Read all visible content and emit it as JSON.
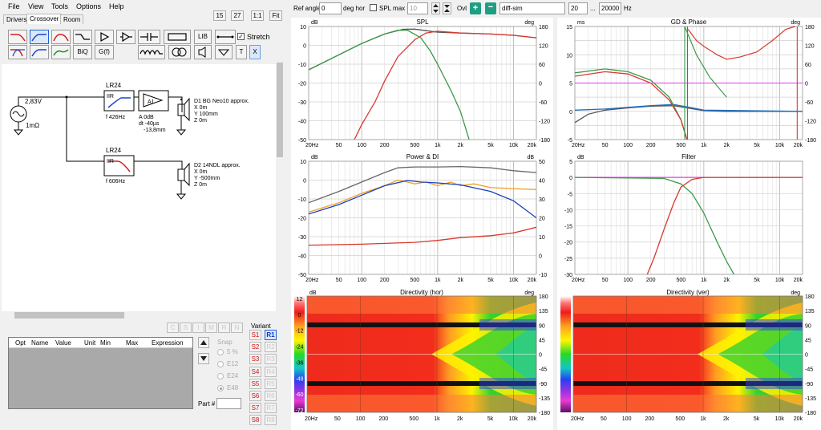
{
  "menu": [
    "File",
    "View",
    "Tools",
    "Options",
    "Help"
  ],
  "tabs": [
    "Drivers",
    "Crossover",
    "Room"
  ],
  "zoom_buttons": [
    "15",
    "27",
    "1:1",
    "Fit"
  ],
  "toolbar": {
    "lib": "LIB",
    "stretch": "Stretch",
    "biq": "BiQ",
    "gf": "G(f)",
    "t": "T",
    "x": "X"
  },
  "topbar": {
    "ref_angle_label": "Ref angle",
    "ref_angle_value": "0",
    "deg_hor": "deg hor",
    "spl_max_label": "SPL max",
    "spl_max_value": "10",
    "ovl_label": "Ovl",
    "ovl_value": "diff-sim",
    "freq_from": "20",
    "freq_dots": "...",
    "freq_to": "20000",
    "hz": "Hz"
  },
  "schematic": {
    "source_voltage": "2,83V",
    "source_res": "1mΩ",
    "filter1": {
      "type": "LR24",
      "kind": "IIR",
      "freq": "f   426Hz"
    },
    "amp": {
      "label": "A1",
      "gain": "A  0dB",
      "delay": "dt -40µs",
      "dist": "-13,8mm"
    },
    "driver1": [
      "D1 BG Neo10 approx.",
      "X 0m",
      "Y 100mm",
      "Z 0m"
    ],
    "filter2": {
      "type": "LR24",
      "kind": "IIR",
      "freq": "f   606Hz"
    },
    "driver2": [
      "D2 14NDL approx.",
      "X 0m",
      "Y -500mm",
      "Z 0m"
    ]
  },
  "param_table": {
    "headers": [
      "Opt",
      "Name",
      "Value",
      "Unit",
      "Min",
      "Max",
      "Expression"
    ]
  },
  "snap": {
    "label": "Snap",
    "options": [
      "5 %",
      "E12",
      "E24",
      "E48"
    ],
    "selected": "E48"
  },
  "part_label": "Part #",
  "variant": {
    "label": "Variant",
    "small_buttons": [
      "C",
      "S",
      "I",
      "M",
      "R",
      "N"
    ],
    "save": [
      "S1",
      "S2",
      "S3",
      "S4",
      "S5",
      "S6",
      "S7",
      "S8"
    ],
    "recall": [
      "R1",
      "R2",
      "R3",
      "R4",
      "R5",
      "R6",
      "R7",
      "R8"
    ],
    "selected": "R1"
  },
  "plots": {
    "spl": {
      "title": "SPL",
      "left_unit": "dB",
      "right_unit": "deg",
      "y_ticks": [
        "10",
        "0",
        "-10",
        "-20",
        "-30",
        "-40",
        "-50"
      ],
      "r_ticks": [
        "180",
        "120",
        "60",
        "0",
        "-60",
        "-120",
        "-180"
      ],
      "x_ticks": [
        "20Hz",
        "50",
        "100",
        "200",
        "500",
        "1k",
        "2k",
        "5k",
        "10k",
        "20k"
      ]
    },
    "gd": {
      "title": "GD & Phase",
      "left_unit": "ms",
      "right_unit": "deg",
      "y_ticks": [
        "15",
        "10",
        "5",
        "0",
        "-5"
      ],
      "r_ticks": [
        "180",
        "120",
        "60",
        "0",
        "-60",
        "-120",
        "-180"
      ],
      "x_ticks": [
        "20Hz",
        "50",
        "100",
        "200",
        "500",
        "1k",
        "2k",
        "5k",
        "10k",
        "20k"
      ]
    },
    "power": {
      "title": "Power & DI",
      "left_unit": "dB",
      "right_unit": "dB",
      "y_ticks": [
        "10",
        "0",
        "-10",
        "-20",
        "-30",
        "-40",
        "-50"
      ],
      "r_ticks": [
        "50",
        "40",
        "30",
        "20",
        "10",
        "0",
        "-10"
      ],
      "x_ticks": [
        "20Hz",
        "50",
        "100",
        "200",
        "500",
        "1k",
        "2k",
        "5k",
        "10k",
        "20k"
      ]
    },
    "filter": {
      "title": "Filter",
      "left_unit": "dB",
      "y_ticks": [
        "5",
        "0",
        "-5",
        "-10",
        "-15",
        "-20",
        "-25",
        "-30"
      ],
      "x_ticks": [
        "20Hz",
        "50",
        "100",
        "200",
        "500",
        "1k",
        "2k",
        "5k",
        "10k",
        "20k"
      ]
    },
    "dir_hor": {
      "title": "Directivity (hor)",
      "left_unit": "dB",
      "right_unit": "deg",
      "scale_ticks": [
        "12",
        "0",
        "-12",
        "-24",
        "-36",
        "-48",
        "-60",
        "-72"
      ],
      "r_ticks": [
        "180",
        "135",
        "90",
        "45",
        "0",
        "-45",
        "-90",
        "-135",
        "-180"
      ],
      "x_ticks": [
        "20Hz",
        "50",
        "100",
        "200",
        "500",
        "1k",
        "2k",
        "5k",
        "10k",
        "20k"
      ]
    },
    "dir_ver": {
      "title": "Directivity (ver)",
      "right_unit": "deg",
      "r_ticks": [
        "180",
        "135",
        "90",
        "45",
        "0",
        "-45",
        "-90",
        "-135",
        "-180"
      ],
      "x_ticks": [
        "20Hz",
        "50",
        "100",
        "200",
        "500",
        "1k",
        "2k",
        "5k",
        "10k",
        "20k"
      ]
    }
  },
  "chart_data": [
    {
      "type": "line",
      "title": "SPL",
      "xscale": "log",
      "xlim": [
        20,
        20000
      ],
      "ylim": [
        -50,
        10
      ],
      "grid": true,
      "series": [
        {
          "color": "#555555",
          "points": [
            [
              20,
              -13
            ],
            [
              50,
              -5
            ],
            [
              100,
              1
            ],
            [
              200,
              6
            ],
            [
              350,
              8.5
            ],
            [
              500,
              8.6
            ],
            [
              700,
              7.8
            ],
            [
              1000,
              7
            ],
            [
              2000,
              6.5
            ],
            [
              5000,
              6
            ],
            [
              10000,
              5.3
            ],
            [
              20000,
              4
            ]
          ]
        },
        {
          "color": "#d8392f",
          "points": [
            [
              80,
              -50
            ],
            [
              100,
              -42
            ],
            [
              150,
              -30
            ],
            [
              200,
              -19
            ],
            [
              300,
              -6
            ],
            [
              500,
              3
            ],
            [
              700,
              6.5
            ],
            [
              1000,
              7.5
            ],
            [
              2000,
              6.5
            ],
            [
              5000,
              6
            ],
            [
              10000,
              5.3
            ],
            [
              20000,
              4
            ]
          ]
        },
        {
          "color": "#3c9a48",
          "points": [
            [
              20,
              -13
            ],
            [
              50,
              -5
            ],
            [
              100,
              1
            ],
            [
              200,
              6
            ],
            [
              300,
              8
            ],
            [
              400,
              8
            ],
            [
              600,
              4
            ],
            [
              800,
              -3
            ],
            [
              1000,
              -10
            ],
            [
              1500,
              -24
            ],
            [
              2000,
              -35
            ],
            [
              2600,
              -50
            ]
          ]
        }
      ]
    },
    {
      "type": "line",
      "title": "GD & Phase",
      "xscale": "log",
      "xlim": [
        20,
        20000
      ],
      "ylim": [
        -5,
        15
      ],
      "grid": true,
      "series": [
        {
          "color": "#555555",
          "points": [
            [
              20,
              -2
            ],
            [
              30,
              -0.5
            ],
            [
              50,
              0.2
            ],
            [
              100,
              0.6
            ],
            [
              200,
              0.9
            ],
            [
              400,
              1
            ],
            [
              600,
              0.6
            ],
            [
              1000,
              0.1
            ],
            [
              2000,
              0
            ],
            [
              20000,
              0
            ]
          ]
        },
        {
          "color": "#1f6fbf",
          "points": [
            [
              20,
              0.2
            ],
            [
              50,
              0.4
            ],
            [
              100,
              0.7
            ],
            [
              200,
              1
            ],
            [
              400,
              1.2
            ],
            [
              600,
              0.8
            ],
            [
              1000,
              0.2
            ],
            [
              20000,
              0
            ]
          ]
        },
        {
          "color": "#3c9a48",
          "points": [
            [
              20,
              6.8
            ],
            [
              50,
              7.5
            ],
            [
              100,
              7
            ],
            [
              200,
              5.5
            ],
            [
              350,
              2.5
            ],
            [
              500,
              -1.5
            ],
            [
              600,
              -5
            ]
          ]
        },
        {
          "color": "#d8392f",
          "points": [
            [
              20,
              6.2
            ],
            [
              50,
              7
            ],
            [
              100,
              6.6
            ],
            [
              200,
              5
            ],
            [
              350,
              2
            ],
            [
              500,
              -1.5
            ],
            [
              600,
              -5
            ]
          ]
        }
      ]
    },
    {
      "type": "line",
      "title": "Power & DI",
      "xscale": "log",
      "xlim": [
        20,
        20000
      ],
      "ylim": [
        -50,
        10
      ],
      "grid": true,
      "series": [
        {
          "color": "#666666",
          "points": [
            [
              20,
              -12
            ],
            [
              50,
              -6
            ],
            [
              100,
              -1
            ],
            [
              200,
              4
            ],
            [
              300,
              6.5
            ],
            [
              500,
              7
            ],
            [
              1000,
              7
            ],
            [
              2000,
              7.2
            ],
            [
              5000,
              6.5
            ],
            [
              10000,
              5
            ],
            [
              20000,
              4
            ]
          ]
        },
        {
          "color": "#f0a020",
          "points": [
            [
              20,
              -17
            ],
            [
              50,
              -12
            ],
            [
              100,
              -7
            ],
            [
              200,
              -3
            ],
            [
              300,
              0
            ],
            [
              400,
              -1
            ],
            [
              500,
              -2
            ],
            [
              700,
              -1
            ],
            [
              1000,
              -3
            ],
            [
              1500,
              -1
            ],
            [
              2000,
              -3
            ],
            [
              3000,
              -2
            ],
            [
              5000,
              -4
            ],
            [
              10000,
              -4.5
            ],
            [
              20000,
              -5
            ]
          ]
        },
        {
          "color": "#1a3fbf",
          "points": [
            [
              20,
              -18
            ],
            [
              50,
              -13
            ],
            [
              100,
              -8
            ],
            [
              200,
              -3
            ],
            [
              400,
              -0.2
            ],
            [
              600,
              -1
            ],
            [
              1000,
              -1.5
            ],
            [
              2000,
              -2.5
            ],
            [
              5000,
              -6
            ],
            [
              10000,
              -11
            ],
            [
              20000,
              -20
            ]
          ]
        },
        {
          "color": "#d8392f",
          "points": [
            [
              20,
              -34.5
            ],
            [
              100,
              -34
            ],
            [
              500,
              -33
            ],
            [
              1000,
              -32
            ],
            [
              2000,
              -30.5
            ],
            [
              5000,
              -29.5
            ],
            [
              10000,
              -28
            ],
            [
              20000,
              -25
            ]
          ]
        }
      ]
    },
    {
      "type": "line",
      "title": "Filter",
      "xscale": "log",
      "xlim": [
        20,
        20000
      ],
      "ylim": [
        -30,
        5
      ],
      "grid": true,
      "series": [
        {
          "color": "#e040e0",
          "points": [
            [
              20,
              0
            ],
            [
              20000,
              0
            ]
          ]
        },
        {
          "color": "#d8392f",
          "points": [
            [
              180,
              -30
            ],
            [
              220,
              -25
            ],
            [
              300,
              -16
            ],
            [
              400,
              -8
            ],
            [
              500,
              -3
            ],
            [
              700,
              -0.6
            ],
            [
              1000,
              0
            ],
            [
              20000,
              0
            ]
          ]
        },
        {
          "color": "#3c9a48",
          "points": [
            [
              20,
              0
            ],
            [
              300,
              -0.3
            ],
            [
              500,
              -2
            ],
            [
              700,
              -5
            ],
            [
              1000,
              -11
            ],
            [
              1500,
              -20
            ],
            [
              2000,
              -26
            ],
            [
              2500,
              -30
            ]
          ]
        }
      ]
    },
    {
      "type": "heatmap",
      "title": "Directivity (hor)",
      "xscale": "log",
      "xlim": [
        20,
        20000
      ],
      "ylim": [
        -180,
        180
      ],
      "zlim": [
        -72,
        12
      ]
    },
    {
      "type": "heatmap",
      "title": "Directivity (ver)",
      "xscale": "log",
      "xlim": [
        20,
        20000
      ],
      "ylim": [
        -180,
        180
      ],
      "zlim": [
        -72,
        12
      ]
    }
  ]
}
